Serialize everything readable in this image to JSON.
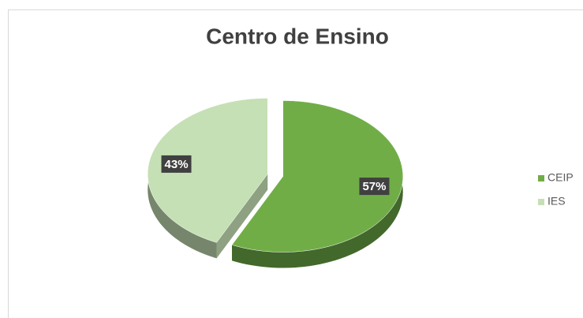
{
  "chart_data": {
    "type": "pie",
    "title": "Centro de Ensino",
    "categories": [
      "CEIP",
      "IES"
    ],
    "values": [
      57,
      43
    ],
    "value_labels": [
      "57%",
      "43%"
    ],
    "colors": [
      "#70ad47",
      "#c5e0b4"
    ],
    "legend": "right",
    "start_angle": -90,
    "exploded": true,
    "three_d": true
  }
}
